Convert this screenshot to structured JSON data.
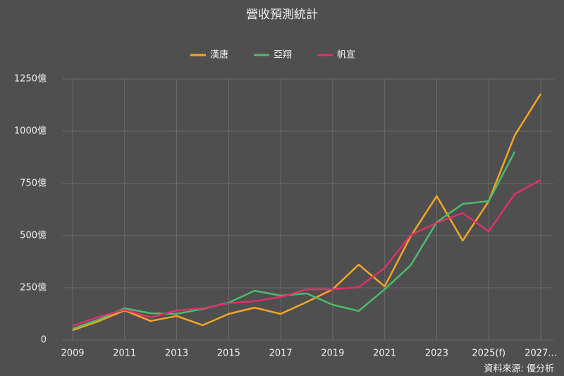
{
  "chart_data": {
    "type": "line",
    "title": "營收預測統計",
    "categories": [
      "2009",
      null,
      "2011",
      null,
      "2013",
      null,
      "2015",
      null,
      "2017",
      null,
      "2019",
      null,
      "2021",
      null,
      "2023",
      null,
      "2025(f)",
      null,
      "2027..."
    ],
    "series": [
      {
        "name": "漢唐",
        "color": "#f5a623",
        "values": [
          47,
          90,
          142,
          91,
          115,
          71,
          125,
          155,
          125,
          182,
          243,
          361,
          257,
          497,
          689,
          476,
          665,
          980,
          1179
        ]
      },
      {
        "name": "亞翔",
        "color": "#4cbb6c",
        "values": [
          54,
          98,
          152,
          128,
          125,
          149,
          179,
          236,
          213,
          223,
          169,
          139,
          243,
          358,
          564,
          652,
          665,
          902,
          null
        ]
      },
      {
        "name": "帆宣",
        "color": "#e0306a",
        "values": [
          68,
          111,
          145,
          108,
          142,
          152,
          176,
          186,
          206,
          243,
          243,
          253,
          345,
          503,
          561,
          608,
          520,
          699,
          767
        ]
      }
    ],
    "ylim": [
      0,
      1250
    ],
    "yticks": [
      0,
      {
        "value": 250,
        "label": "250億"
      },
      {
        "value": 500,
        "label": "500億"
      },
      {
        "value": 750,
        "label": "750億"
      },
      {
        "value": 1000,
        "label": "1000億"
      },
      {
        "value": 1250,
        "label": "1250億"
      }
    ],
    "grid": true,
    "legend": "top",
    "source": "資料來源: 優分析"
  }
}
